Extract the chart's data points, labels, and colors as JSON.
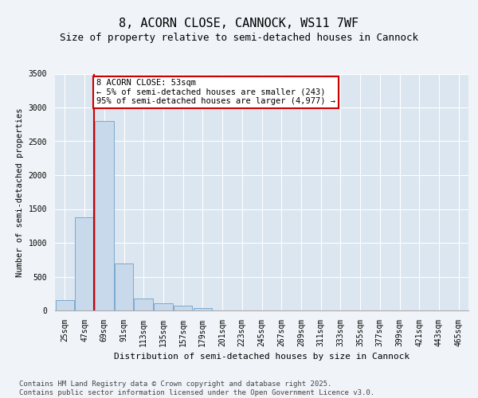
{
  "title": "8, ACORN CLOSE, CANNOCK, WS11 7WF",
  "subtitle": "Size of property relative to semi-detached houses in Cannock",
  "xlabel": "Distribution of semi-detached houses by size in Cannock",
  "ylabel": "Number of semi-detached properties",
  "categories": [
    "25sqm",
    "47sqm",
    "69sqm",
    "91sqm",
    "113sqm",
    "135sqm",
    "157sqm",
    "179sqm",
    "201sqm",
    "223sqm",
    "245sqm",
    "267sqm",
    "289sqm",
    "311sqm",
    "333sqm",
    "355sqm",
    "377sqm",
    "399sqm",
    "421sqm",
    "443sqm",
    "465sqm"
  ],
  "values": [
    150,
    1380,
    2800,
    700,
    175,
    110,
    65,
    40,
    0,
    0,
    0,
    0,
    0,
    0,
    0,
    0,
    0,
    0,
    0,
    0,
    0
  ],
  "bar_color": "#c9d9ec",
  "bar_edge_color": "#7aaace",
  "vline_color": "#cc0000",
  "annotation_text": "8 ACORN CLOSE: 53sqm\n← 5% of semi-detached houses are smaller (243)\n95% of semi-detached houses are larger (4,977) →",
  "annotation_box_color": "#ffffff",
  "annotation_box_edge": "#cc0000",
  "ylim": [
    0,
    3500
  ],
  "yticks": [
    0,
    500,
    1000,
    1500,
    2000,
    2500,
    3000,
    3500
  ],
  "fig_bg_color": "#f0f4f8",
  "plot_bg_color": "#dce6f0",
  "footer_text": "Contains HM Land Registry data © Crown copyright and database right 2025.\nContains public sector information licensed under the Open Government Licence v3.0.",
  "title_fontsize": 11,
  "subtitle_fontsize": 9,
  "annotation_fontsize": 7.5,
  "footer_fontsize": 6.5,
  "ylabel_fontsize": 7.5,
  "xlabel_fontsize": 8,
  "tick_fontsize": 7
}
